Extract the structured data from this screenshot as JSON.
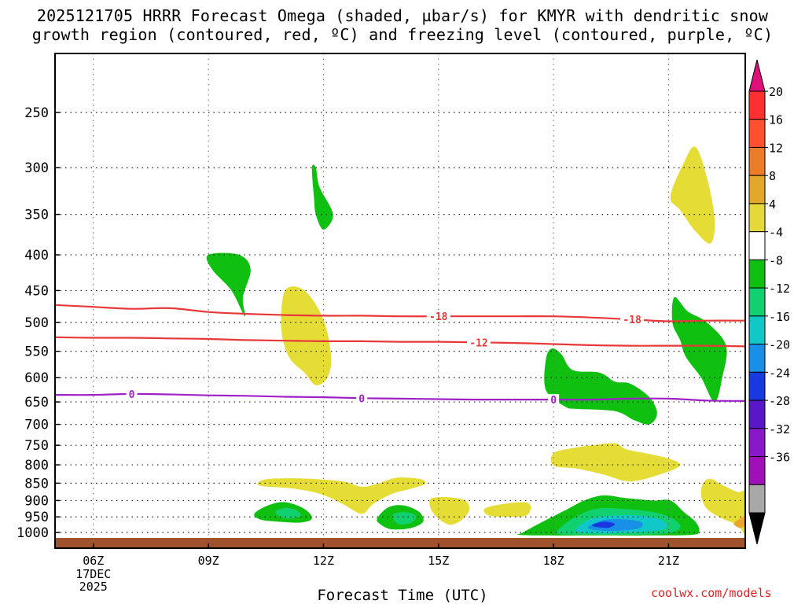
{
  "title": {
    "line1": "2025121705 HRRR Forecast Omega (shaded, µbar/s) for KMYR with dendritic snow",
    "line2": "growth region (contoured, red, ºC) and freezing level (contoured, purple, ºC)"
  },
  "xlabel": "Forecast Time (UTC)",
  "credit": "coolwx.com/models",
  "chart_data": {
    "type": "contour",
    "x_unit": "forecast hour (UTC)",
    "xlim": [
      5,
      23
    ],
    "x_ticks": [
      {
        "value": 6,
        "label": "06Z"
      },
      {
        "value": 9,
        "label": "09Z"
      },
      {
        "value": 12,
        "label": "12Z"
      },
      {
        "value": 15,
        "label": "15Z"
      },
      {
        "value": 18,
        "label": "18Z"
      },
      {
        "value": 21,
        "label": "21Z"
      }
    ],
    "date_label": [
      "17DEC",
      "2025"
    ],
    "y_unit": "hPa",
    "y_ticks": [
      250,
      300,
      350,
      400,
      450,
      500,
      550,
      600,
      650,
      700,
      750,
      800,
      850,
      900,
      950,
      1000
    ],
    "ylim": [
      1000,
      200
    ],
    "colorbar": {
      "labels": [
        "20",
        "16",
        "12",
        "8",
        "4",
        "-4",
        "-8",
        "-12",
        "-16",
        "-20",
        "-24",
        "-28",
        "-32",
        "-36"
      ],
      "colors": [
        "#e0107a",
        "#ff3030",
        "#ff5030",
        "#ea7c2a",
        "#e3a82a",
        "#e5d83a",
        "#ffffff",
        "#10c010",
        "#10d070",
        "#10c8c8",
        "#1890e8",
        "#1838e0",
        "#5818c8",
        "#8818c8",
        "#a010b8",
        "#a8a8a8",
        "#000000"
      ]
    },
    "omega_regions": [
      {
        "color": "#e5dd36",
        "points": [
          [
            11.0,
            450
          ],
          [
            11.5,
            450
          ],
          [
            12.0,
            495
          ],
          [
            12.2,
            560
          ],
          [
            12.1,
            600
          ],
          [
            11.8,
            615
          ],
          [
            11.5,
            590
          ],
          [
            11.1,
            560
          ],
          [
            10.9,
            510
          ]
        ]
      },
      {
        "color": "#e5dd36",
        "points": [
          [
            21.05,
            330
          ],
          [
            21.4,
            295
          ],
          [
            21.7,
            280
          ],
          [
            22.0,
            310
          ],
          [
            22.2,
            355
          ],
          [
            22.1,
            385
          ],
          [
            21.7,
            370
          ],
          [
            21.3,
            345
          ]
        ]
      },
      {
        "color": "#e5dd36",
        "points": [
          [
            19.0,
            750
          ],
          [
            19.6,
            745
          ],
          [
            19.9,
            760
          ],
          [
            20.5,
            772
          ],
          [
            21.05,
            785
          ],
          [
            21.3,
            802
          ],
          [
            20.8,
            825
          ],
          [
            20.0,
            845
          ],
          [
            19.3,
            826
          ],
          [
            18.6,
            810
          ],
          [
            18.0,
            802
          ],
          [
            18.0,
            770
          ],
          [
            18.5,
            757
          ]
        ]
      },
      {
        "color": "#e5dd36",
        "points": [
          [
            10.3,
            848
          ],
          [
            10.6,
            838
          ],
          [
            11.5,
            837
          ],
          [
            12.5,
            845
          ],
          [
            13.0,
            860
          ],
          [
            13.4,
            852
          ],
          [
            13.9,
            835
          ],
          [
            14.5,
            838
          ],
          [
            14.65,
            852
          ],
          [
            14.2,
            868
          ],
          [
            13.8,
            880
          ],
          [
            13.3,
            910
          ],
          [
            13.0,
            940
          ],
          [
            12.5,
            910
          ],
          [
            11.9,
            880
          ],
          [
            11.2,
            865
          ],
          [
            10.4,
            858
          ]
        ]
      },
      {
        "color": "#e5dd36",
        "points": [
          [
            14.8,
            895
          ],
          [
            15.2,
            890
          ],
          [
            15.7,
            900
          ],
          [
            15.8,
            930
          ],
          [
            15.6,
            960
          ],
          [
            15.3,
            975
          ],
          [
            15.0,
            955
          ],
          [
            14.8,
            925
          ]
        ]
      },
      {
        "color": "#e5dd36",
        "points": [
          [
            16.2,
            925
          ],
          [
            16.6,
            912
          ],
          [
            17.2,
            905
          ],
          [
            17.4,
            915
          ],
          [
            17.3,
            945
          ],
          [
            16.8,
            950
          ],
          [
            16.3,
            945
          ]
        ]
      },
      {
        "color": "#e5dd36",
        "points": [
          [
            21.9,
            850
          ],
          [
            22.1,
            838
          ],
          [
            22.4,
            855
          ],
          [
            22.8,
            875
          ],
          [
            23.0,
            880
          ],
          [
            23.0,
            1000
          ],
          [
            22.8,
            975
          ],
          [
            22.4,
            955
          ],
          [
            22.0,
            925
          ],
          [
            21.85,
            885
          ]
        ]
      },
      {
        "color": "#e9a62a",
        "points": [
          [
            22.7,
            970
          ],
          [
            22.95,
            950
          ],
          [
            23.0,
            950
          ],
          [
            23.0,
            975
          ],
          [
            22.85,
            985
          ]
        ]
      },
      {
        "color": "#10c010",
        "points": [
          [
            11.7,
            300
          ],
          [
            11.8,
            300
          ],
          [
            11.9,
            320
          ],
          [
            12.25,
            350
          ],
          [
            12.0,
            368
          ],
          [
            11.8,
            350
          ],
          [
            11.75,
            330
          ]
        ]
      },
      {
        "color": "#10c010",
        "points": [
          [
            9.0,
            400
          ],
          [
            9.8,
            400
          ],
          [
            10.1,
            420
          ],
          [
            9.9,
            460
          ],
          [
            9.95,
            490
          ],
          [
            9.6,
            450
          ],
          [
            9.1,
            420
          ]
        ]
      },
      {
        "color": "#10c010",
        "points": [
          [
            21.15,
            460
          ],
          [
            21.5,
            482
          ],
          [
            22.0,
            500
          ],
          [
            22.5,
            540
          ],
          [
            22.4,
            600
          ],
          [
            22.2,
            650
          ],
          [
            21.85,
            600
          ],
          [
            21.45,
            560
          ],
          [
            21.3,
            530
          ],
          [
            21.1,
            500
          ]
        ]
      },
      {
        "color": "#10c010",
        "points": [
          [
            17.8,
            565
          ],
          [
            17.95,
            545
          ],
          [
            18.2,
            555
          ],
          [
            18.5,
            585
          ],
          [
            19.2,
            590
          ],
          [
            19.6,
            608
          ],
          [
            20.0,
            612
          ],
          [
            20.5,
            640
          ],
          [
            20.7,
            675
          ],
          [
            20.5,
            700
          ],
          [
            20.1,
            690
          ],
          [
            19.6,
            670
          ],
          [
            18.6,
            665
          ],
          [
            18.3,
            660
          ],
          [
            17.8,
            625
          ]
        ]
      },
      {
        "color": "#10c010",
        "points": [
          [
            10.2,
            940
          ],
          [
            10.55,
            915
          ],
          [
            11.0,
            905
          ],
          [
            11.5,
            925
          ],
          [
            11.7,
            955
          ],
          [
            11.4,
            968
          ],
          [
            10.8,
            965
          ],
          [
            10.35,
            958
          ]
        ]
      },
      {
        "color": "#10c010",
        "points": [
          [
            13.4,
            955
          ],
          [
            13.7,
            920
          ],
          [
            14.1,
            915
          ],
          [
            14.5,
            935
          ],
          [
            14.6,
            965
          ],
          [
            14.3,
            985
          ],
          [
            13.8,
            990
          ],
          [
            13.5,
            975
          ]
        ]
      },
      {
        "color": "#10c010",
        "points": [
          [
            17.2,
            1000
          ],
          [
            17.8,
            960
          ],
          [
            18.3,
            930
          ],
          [
            18.8,
            900
          ],
          [
            19.3,
            885
          ],
          [
            19.9,
            893
          ],
          [
            20.6,
            900
          ],
          [
            21.05,
            900
          ],
          [
            21.4,
            935
          ],
          [
            21.7,
            965
          ],
          [
            21.8,
            995
          ],
          [
            21.6,
            1008
          ],
          [
            20.4,
            1010
          ],
          [
            19.2,
            1010
          ],
          [
            17.8,
            1010
          ],
          [
            17.1,
            1008
          ]
        ]
      },
      {
        "color": "#10d070",
        "points": [
          [
            10.75,
            935
          ],
          [
            11.0,
            922
          ],
          [
            11.3,
            930
          ],
          [
            11.4,
            948
          ],
          [
            11.0,
            955
          ]
        ]
      },
      {
        "color": "#10d070",
        "points": [
          [
            13.8,
            945
          ],
          [
            14.1,
            935
          ],
          [
            14.4,
            945
          ],
          [
            14.3,
            968
          ],
          [
            13.95,
            972
          ]
        ]
      },
      {
        "color": "#10d070",
        "points": [
          [
            18.1,
            995
          ],
          [
            18.5,
            955
          ],
          [
            19.1,
            925
          ],
          [
            19.8,
            925
          ],
          [
            20.6,
            935
          ],
          [
            21.1,
            955
          ],
          [
            21.3,
            985
          ],
          [
            20.8,
            1005
          ],
          [
            19.2,
            1008
          ],
          [
            18.2,
            1006
          ]
        ]
      },
      {
        "color": "#10c8c8",
        "points": [
          [
            18.6,
            988
          ],
          [
            19.0,
            955
          ],
          [
            19.7,
            945
          ],
          [
            20.4,
            948
          ],
          [
            20.9,
            965
          ],
          [
            20.8,
            992
          ],
          [
            19.5,
            1003
          ],
          [
            18.7,
            1000
          ]
        ]
      },
      {
        "color": "#1890e8",
        "points": [
          [
            18.9,
            985
          ],
          [
            19.3,
            960
          ],
          [
            19.9,
            958
          ],
          [
            20.3,
            968
          ],
          [
            20.2,
            988
          ],
          [
            19.4,
            995
          ]
        ]
      },
      {
        "color": "#1838e0",
        "points": [
          [
            19.0,
            978
          ],
          [
            19.3,
            965
          ],
          [
            19.6,
            972
          ],
          [
            19.4,
            985
          ]
        ]
      }
    ],
    "dgz_contours": [
      {
        "label": "-18",
        "color": "#e8383a",
        "label_x": [
          15.0,
          20.05
        ],
        "points": [
          [
            5,
            472
          ],
          [
            6,
            475
          ],
          [
            7,
            478
          ],
          [
            8,
            477
          ],
          [
            9,
            483
          ],
          [
            10,
            486
          ],
          [
            11,
            488
          ],
          [
            12,
            489
          ],
          [
            13,
            489
          ],
          [
            14,
            490
          ],
          [
            15,
            490
          ],
          [
            16,
            490
          ],
          [
            17,
            490
          ],
          [
            18,
            490
          ],
          [
            19,
            492
          ],
          [
            20,
            495
          ],
          [
            21,
            498
          ],
          [
            22,
            497
          ],
          [
            23,
            497
          ]
        ]
      },
      {
        "label": "-12",
        "color": "#e8383a",
        "label_x": [
          16.05
        ],
        "points": [
          [
            5,
            525
          ],
          [
            6,
            526
          ],
          [
            7,
            526
          ],
          [
            8,
            527
          ],
          [
            9,
            528
          ],
          [
            10,
            530
          ],
          [
            11,
            531
          ],
          [
            12,
            532
          ],
          [
            13,
            532
          ],
          [
            14,
            533
          ],
          [
            15,
            533
          ],
          [
            16,
            534
          ],
          [
            17,
            535
          ],
          [
            18,
            537
          ],
          [
            19,
            539
          ],
          [
            20,
            540
          ],
          [
            21,
            540
          ],
          [
            22,
            540
          ],
          [
            23,
            541
          ]
        ]
      }
    ],
    "freezing_level": {
      "label": "0",
      "color": "#a020c8",
      "label_x": [
        7.0,
        13.0,
        18.0
      ],
      "points": [
        [
          5,
          635
        ],
        [
          6,
          635
        ],
        [
          7,
          633
        ],
        [
          8,
          634
        ],
        [
          9,
          636
        ],
        [
          10,
          637
        ],
        [
          11,
          639
        ],
        [
          12,
          640
        ],
        [
          13,
          642
        ],
        [
          14,
          643
        ],
        [
          15,
          644
        ],
        [
          16,
          645
        ],
        [
          17,
          645
        ],
        [
          18,
          645
        ],
        [
          19,
          645
        ],
        [
          20,
          643
        ],
        [
          21,
          643
        ],
        [
          22,
          647
        ],
        [
          23,
          648
        ]
      ]
    },
    "ground_color": "#a0522d"
  }
}
